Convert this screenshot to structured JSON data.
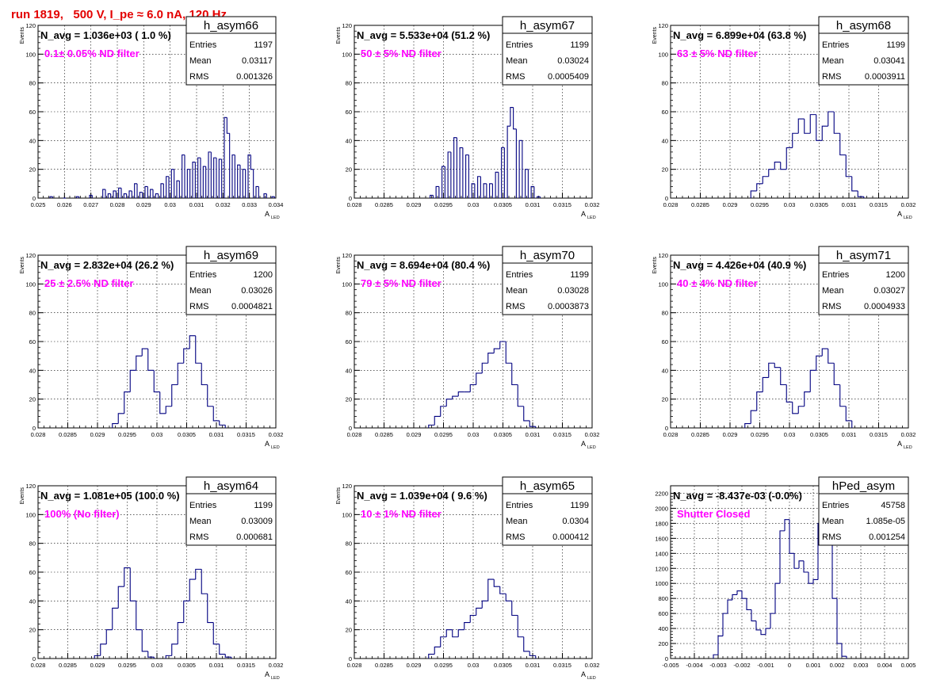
{
  "title": "run 1819,   500 V, I_pe ≈ 6.0 nA, 120 Hz",
  "colors": {
    "title": "#e30000",
    "histogram": "#000080",
    "annotation": "#ff00ff"
  },
  "chart_data": [
    {
      "type": "histogram",
      "stats_title": "h_asym66",
      "entries": "1197",
      "mean": "0.03117",
      "rms": "0.001326",
      "n_avg": "N_avg = 1.036e+03 ( 1.0 %)",
      "filter": "0.1± 0.05% ND filter",
      "xlabel": "A",
      "xlabel_sub": "LED",
      "ylabel": "Events",
      "xlim": [
        0.025,
        0.034
      ],
      "ylim": [
        0,
        120
      ],
      "xticks": [
        0.025,
        0.026,
        0.027,
        0.028,
        0.029,
        0.03,
        0.031,
        0.032,
        0.033,
        0.034
      ],
      "xtick_labels": [
        "0.025",
        "0.026",
        "0.027",
        "0.028",
        "0.029",
        "0.03",
        "0.031",
        "0.032",
        "0.033",
        "0.034"
      ],
      "yticks": [
        0,
        20,
        40,
        60,
        80,
        100,
        120
      ],
      "ytick_labels": [
        "0",
        "20",
        "40",
        "60",
        "80",
        "100",
        "120"
      ],
      "bins": [
        [
          0.0255,
          1
        ],
        [
          0.026,
          0
        ],
        [
          0.0265,
          1
        ],
        [
          0.027,
          2
        ],
        [
          0.0275,
          6
        ],
        [
          0.0277,
          3
        ],
        [
          0.0279,
          5
        ],
        [
          0.0281,
          7
        ],
        [
          0.0283,
          3
        ],
        [
          0.0285,
          5
        ],
        [
          0.0287,
          10
        ],
        [
          0.0289,
          4
        ],
        [
          0.0291,
          8
        ],
        [
          0.0293,
          6
        ],
        [
          0.0295,
          3
        ],
        [
          0.0297,
          10
        ],
        [
          0.0299,
          15
        ],
        [
          0.0301,
          20
        ],
        [
          0.0303,
          12
        ],
        [
          0.0305,
          30
        ],
        [
          0.0307,
          20
        ],
        [
          0.0309,
          25
        ],
        [
          0.0311,
          28
        ],
        [
          0.0313,
          22
        ],
        [
          0.0315,
          32
        ],
        [
          0.0317,
          28
        ],
        [
          0.0319,
          27
        ],
        [
          0.0321,
          56
        ],
        [
          0.0322,
          45
        ],
        [
          0.0324,
          30
        ],
        [
          0.0326,
          23
        ],
        [
          0.0328,
          20
        ],
        [
          0.033,
          30
        ],
        [
          0.0331,
          20
        ],
        [
          0.0333,
          8
        ],
        [
          0.0336,
          3
        ],
        [
          0.0339,
          1
        ]
      ]
    },
    {
      "type": "histogram",
      "stats_title": "h_asym67",
      "entries": "1199",
      "mean": "0.03024",
      "rms": "0.0005409",
      "n_avg": "N_avg = 5.533e+04 (51.2 %)",
      "filter": "50 ± 5% ND filter",
      "xlabel": "A",
      "xlabel_sub": "LED",
      "ylabel": "Events",
      "xlim": [
        0.028,
        0.032
      ],
      "ylim": [
        0,
        120
      ],
      "xticks": [
        0.028,
        0.0285,
        0.029,
        0.0295,
        0.03,
        0.0305,
        0.031,
        0.0315,
        0.032
      ],
      "xtick_labels": [
        "0.028",
        "0.0285",
        "0.029",
        "0.0295",
        "0.03",
        "0.0305",
        "0.031",
        "0.0315",
        "0.032"
      ],
      "yticks": [
        0,
        20,
        40,
        60,
        80,
        100,
        120
      ],
      "ytick_labels": [
        "0",
        "20",
        "40",
        "60",
        "80",
        "100",
        "120"
      ],
      "bins": [
        [
          0.0293,
          2
        ],
        [
          0.0294,
          8
        ],
        [
          0.0295,
          22
        ],
        [
          0.0296,
          32
        ],
        [
          0.0297,
          42
        ],
        [
          0.0298,
          35
        ],
        [
          0.0299,
          30
        ],
        [
          0.03,
          10
        ],
        [
          0.0301,
          15
        ],
        [
          0.0302,
          10
        ],
        [
          0.0303,
          10
        ],
        [
          0.0304,
          18
        ],
        [
          0.0305,
          35
        ],
        [
          0.0306,
          50
        ],
        [
          0.03065,
          63
        ],
        [
          0.0307,
          48
        ],
        [
          0.0308,
          40
        ],
        [
          0.0309,
          20
        ],
        [
          0.031,
          8
        ],
        [
          0.0311,
          1
        ]
      ]
    },
    {
      "type": "histogram",
      "stats_title": "h_asym68",
      "entries": "1199",
      "mean": "0.03041",
      "rms": "0.0003911",
      "n_avg": "N_avg = 6.899e+04 (63.8 %)",
      "filter": "63 ± 5% ND filter",
      "xlabel": "A",
      "xlabel_sub": "LED",
      "ylabel": "Events",
      "xlim": [
        0.028,
        0.032
      ],
      "ylim": [
        0,
        120
      ],
      "xticks": [
        0.028,
        0.0285,
        0.029,
        0.0295,
        0.03,
        0.0305,
        0.031,
        0.0315,
        0.032
      ],
      "xtick_labels": [
        "0.028",
        "0.0285",
        "0.029",
        "0.0295",
        "0.03",
        "0.0305",
        "0.031",
        "0.0315",
        "0.032"
      ],
      "yticks": [
        0,
        20,
        40,
        60,
        80,
        100,
        120
      ],
      "ytick_labels": [
        "0",
        "20",
        "40",
        "60",
        "80",
        "100",
        "120"
      ],
      "bins": [
        [
          0.0294,
          5
        ],
        [
          0.0295,
          10
        ],
        [
          0.0296,
          15
        ],
        [
          0.0297,
          20
        ],
        [
          0.0298,
          25
        ],
        [
          0.0299,
          20
        ],
        [
          0.03,
          35
        ],
        [
          0.0301,
          45
        ],
        [
          0.0302,
          55
        ],
        [
          0.0303,
          45
        ],
        [
          0.0304,
          58
        ],
        [
          0.0305,
          40
        ],
        [
          0.0306,
          50
        ],
        [
          0.0307,
          60
        ],
        [
          0.0308,
          45
        ],
        [
          0.0309,
          30
        ],
        [
          0.031,
          15
        ],
        [
          0.0311,
          5
        ],
        [
          0.0312,
          1
        ]
      ]
    },
    {
      "type": "histogram",
      "stats_title": "h_asym69",
      "entries": "1200",
      "mean": "0.03026",
      "rms": "0.0004821",
      "n_avg": "N_avg = 2.832e+04 (26.2 %)",
      "filter": "25 ± 2.5% ND filter",
      "xlabel": "A",
      "xlabel_sub": "LED",
      "ylabel": "Events",
      "xlim": [
        0.028,
        0.032
      ],
      "ylim": [
        0,
        120
      ],
      "xticks": [
        0.028,
        0.0285,
        0.029,
        0.0295,
        0.03,
        0.0305,
        0.031,
        0.0315,
        0.032
      ],
      "xtick_labels": [
        "0.028",
        "0.0285",
        "0.029",
        "0.0295",
        "0.03",
        "0.0305",
        "0.031",
        "0.0315",
        "0.032"
      ],
      "yticks": [
        0,
        20,
        40,
        60,
        80,
        100,
        120
      ],
      "ytick_labels": [
        "0",
        "20",
        "40",
        "60",
        "80",
        "100",
        "120"
      ],
      "bins": [
        [
          0.0293,
          3
        ],
        [
          0.0294,
          10
        ],
        [
          0.0295,
          25
        ],
        [
          0.0296,
          40
        ],
        [
          0.0297,
          50
        ],
        [
          0.0298,
          55
        ],
        [
          0.0299,
          40
        ],
        [
          0.03,
          25
        ],
        [
          0.0301,
          10
        ],
        [
          0.0302,
          15
        ],
        [
          0.0303,
          30
        ],
        [
          0.0304,
          45
        ],
        [
          0.0305,
          55
        ],
        [
          0.0306,
          64
        ],
        [
          0.0307,
          45
        ],
        [
          0.0308,
          30
        ],
        [
          0.0309,
          15
        ],
        [
          0.031,
          5
        ],
        [
          0.0311,
          2
        ]
      ]
    },
    {
      "type": "histogram",
      "stats_title": "h_asym70",
      "entries": "1199",
      "mean": "0.03028",
      "rms": "0.0003873",
      "n_avg": "N_avg = 8.694e+04 (80.4 %)",
      "filter": "79 ± 5% ND filter",
      "xlabel": "A",
      "xlabel_sub": "LED",
      "ylabel": "Events",
      "xlim": [
        0.028,
        0.032
      ],
      "ylim": [
        0,
        120
      ],
      "xticks": [
        0.028,
        0.0285,
        0.029,
        0.0295,
        0.03,
        0.0305,
        0.031,
        0.0315,
        0.032
      ],
      "xtick_labels": [
        "0.028",
        "0.0285",
        "0.029",
        "0.0295",
        "0.03",
        "0.0305",
        "0.031",
        "0.0315",
        "0.032"
      ],
      "yticks": [
        0,
        20,
        40,
        60,
        80,
        100,
        120
      ],
      "ytick_labels": [
        "0",
        "20",
        "40",
        "60",
        "80",
        "100",
        "120"
      ],
      "bins": [
        [
          0.0293,
          2
        ],
        [
          0.0294,
          8
        ],
        [
          0.0295,
          15
        ],
        [
          0.0296,
          20
        ],
        [
          0.0297,
          22
        ],
        [
          0.0298,
          25
        ],
        [
          0.0299,
          25
        ],
        [
          0.03,
          30
        ],
        [
          0.0301,
          38
        ],
        [
          0.0302,
          45
        ],
        [
          0.0303,
          52
        ],
        [
          0.0304,
          55
        ],
        [
          0.0305,
          60
        ],
        [
          0.0306,
          45
        ],
        [
          0.0307,
          30
        ],
        [
          0.0308,
          15
        ],
        [
          0.0309,
          5
        ],
        [
          0.031,
          1
        ]
      ]
    },
    {
      "type": "histogram",
      "stats_title": "h_asym71",
      "entries": "1200",
      "mean": "0.03027",
      "rms": "0.0004933",
      "n_avg": "N_avg = 4.426e+04 (40.9 %)",
      "filter": "40 ± 4% ND filter",
      "xlabel": "A",
      "xlabel_sub": "LED",
      "ylabel": "Events",
      "xlim": [
        0.028,
        0.032
      ],
      "ylim": [
        0,
        120
      ],
      "xticks": [
        0.028,
        0.0285,
        0.029,
        0.0295,
        0.03,
        0.0305,
        0.031,
        0.0315,
        0.032
      ],
      "xtick_labels": [
        "0.028",
        "0.0285",
        "0.029",
        "0.0295",
        "0.03",
        "0.0305",
        "0.031",
        "0.0315",
        "0.032"
      ],
      "yticks": [
        0,
        20,
        40,
        60,
        80,
        100,
        120
      ],
      "ytick_labels": [
        "0",
        "20",
        "40",
        "60",
        "80",
        "100",
        "120"
      ],
      "bins": [
        [
          0.0293,
          3
        ],
        [
          0.0294,
          12
        ],
        [
          0.0295,
          25
        ],
        [
          0.0296,
          35
        ],
        [
          0.0297,
          45
        ],
        [
          0.0298,
          42
        ],
        [
          0.0299,
          30
        ],
        [
          0.03,
          18
        ],
        [
          0.0301,
          10
        ],
        [
          0.0302,
          15
        ],
        [
          0.0303,
          25
        ],
        [
          0.0304,
          40
        ],
        [
          0.0305,
          50
        ],
        [
          0.0306,
          55
        ],
        [
          0.0307,
          45
        ],
        [
          0.0308,
          30
        ],
        [
          0.0309,
          15
        ],
        [
          0.031,
          5
        ]
      ]
    },
    {
      "type": "histogram",
      "stats_title": "h_asym64",
      "entries": "1199",
      "mean": "0.03009",
      "rms": "0.000681",
      "n_avg": "N_avg = 1.081e+05 (100.0 %)",
      "filter": "100% (No filter)",
      "xlabel": "A",
      "xlabel_sub": "LED",
      "ylabel": "Events",
      "xlim": [
        0.028,
        0.032
      ],
      "ylim": [
        0,
        120
      ],
      "xticks": [
        0.028,
        0.0285,
        0.029,
        0.0295,
        0.03,
        0.0305,
        0.031,
        0.0315,
        0.032
      ],
      "xtick_labels": [
        "0.028",
        "0.0285",
        "0.029",
        "0.0295",
        "0.03",
        "0.0305",
        "0.031",
        "0.0315",
        "0.032"
      ],
      "yticks": [
        0,
        20,
        40,
        60,
        80,
        100,
        120
      ],
      "ytick_labels": [
        "0",
        "20",
        "40",
        "60",
        "80",
        "100",
        "120"
      ],
      "bins": [
        [
          0.029,
          2
        ],
        [
          0.0291,
          10
        ],
        [
          0.0292,
          20
        ],
        [
          0.0293,
          35
        ],
        [
          0.0294,
          50
        ],
        [
          0.0295,
          63
        ],
        [
          0.0296,
          40
        ],
        [
          0.0297,
          20
        ],
        [
          0.0298,
          5
        ],
        [
          0.0299,
          1
        ],
        [
          0.0302,
          2
        ],
        [
          0.0303,
          10
        ],
        [
          0.0304,
          25
        ],
        [
          0.0305,
          40
        ],
        [
          0.0306,
          55
        ],
        [
          0.0307,
          62
        ],
        [
          0.0308,
          45
        ],
        [
          0.0309,
          25
        ],
        [
          0.031,
          10
        ],
        [
          0.0311,
          3
        ],
        [
          0.0312,
          1
        ]
      ]
    },
    {
      "type": "histogram",
      "stats_title": "h_asym65",
      "entries": "1199",
      "mean": "0.0304",
      "rms": "0.000412",
      "n_avg": "N_avg = 1.039e+04 ( 9.6 %)",
      "filter": "10 ± 1% ND filter",
      "xlabel": "A",
      "xlabel_sub": "LED",
      "ylabel": "Events",
      "xlim": [
        0.028,
        0.032
      ],
      "ylim": [
        0,
        120
      ],
      "xticks": [
        0.028,
        0.0285,
        0.029,
        0.0295,
        0.03,
        0.0305,
        0.031,
        0.0315,
        0.032
      ],
      "xtick_labels": [
        "0.028",
        "0.0285",
        "0.029",
        "0.0295",
        "0.03",
        "0.0305",
        "0.031",
        "0.0315",
        "0.032"
      ],
      "yticks": [
        0,
        20,
        40,
        60,
        80,
        100,
        120
      ],
      "ytick_labels": [
        "0",
        "20",
        "40",
        "60",
        "80",
        "100",
        "120"
      ],
      "bins": [
        [
          0.0293,
          3
        ],
        [
          0.0294,
          8
        ],
        [
          0.0295,
          15
        ],
        [
          0.0296,
          20
        ],
        [
          0.0297,
          15
        ],
        [
          0.0298,
          20
        ],
        [
          0.0299,
          25
        ],
        [
          0.03,
          30
        ],
        [
          0.0301,
          35
        ],
        [
          0.0302,
          40
        ],
        [
          0.0303,
          55
        ],
        [
          0.0304,
          50
        ],
        [
          0.0305,
          45
        ],
        [
          0.0306,
          40
        ],
        [
          0.0307,
          30
        ],
        [
          0.0308,
          15
        ],
        [
          0.0309,
          5
        ],
        [
          0.031,
          2
        ]
      ]
    },
    {
      "type": "histogram",
      "stats_title": "hPed_asym",
      "entries": "45758",
      "mean": "1.085e-05",
      "rms": "0.001254",
      "n_avg": "N_avg = -8.437e-03 (-0.0%)",
      "filter": "Shutter Closed",
      "xlabel": "",
      "xlabel_sub": "",
      "ylabel": "",
      "xlim": [
        -0.005,
        0.005
      ],
      "ylim": [
        0,
        2300
      ],
      "xticks": [
        -0.005,
        -0.004,
        -0.003,
        -0.002,
        -0.001,
        0,
        0.001,
        0.002,
        0.003,
        0.004,
        0.005
      ],
      "xtick_labels": [
        "-0.005",
        "-0.004",
        "-0.003",
        "-0.002",
        "-0.001",
        "0",
        "0.001",
        "0.002",
        "0.003",
        "0.004",
        "0.005"
      ],
      "yticks": [
        0,
        200,
        400,
        600,
        800,
        1000,
        1200,
        1400,
        1600,
        1800,
        2000,
        2200
      ],
      "ytick_labels": [
        "0",
        "200",
        "400",
        "600",
        "800",
        "1000",
        "1200",
        "1400",
        "1600",
        "1800",
        "2000",
        "2200"
      ],
      "bins": [
        [
          -0.0031,
          50
        ],
        [
          -0.0029,
          300
        ],
        [
          -0.0027,
          600
        ],
        [
          -0.0025,
          780
        ],
        [
          -0.0023,
          850
        ],
        [
          -0.0021,
          900
        ],
        [
          -0.0019,
          800
        ],
        [
          -0.0017,
          650
        ],
        [
          -0.0015,
          500
        ],
        [
          -0.0013,
          380
        ],
        [
          -0.0011,
          320
        ],
        [
          -0.0009,
          400
        ],
        [
          -0.0007,
          600
        ],
        [
          -0.0005,
          1000
        ],
        [
          -0.0003,
          1700
        ],
        [
          -0.0001,
          1850
        ],
        [
          0.0001,
          1400
        ],
        [
          0.0003,
          1200
        ],
        [
          0.0005,
          1300
        ],
        [
          0.0007,
          1150
        ],
        [
          0.0009,
          1000
        ],
        [
          0.0011,
          1050
        ],
        [
          0.0013,
          1800
        ],
        [
          0.0015,
          2200
        ],
        [
          0.0017,
          1600
        ],
        [
          0.0019,
          800
        ],
        [
          0.0021,
          200
        ],
        [
          0.0023,
          30
        ]
      ]
    }
  ]
}
